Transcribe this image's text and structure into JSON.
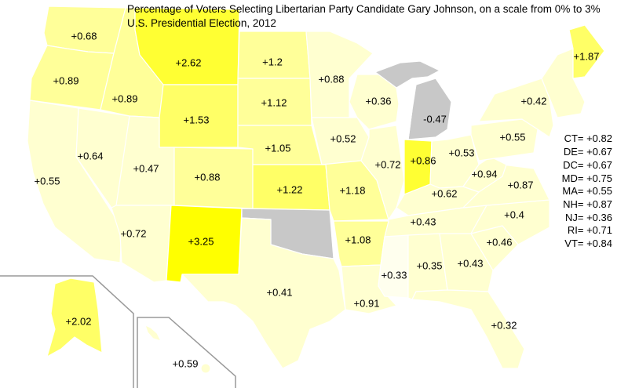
{
  "title_line1": "Percentage of Voters Selecting Libertarian Party Candidate Gary Johnson, on a scale from 0% to 3%",
  "title_line2": "U.S. Presidential Election, 2012",
  "colors": {
    "very_light": "#ffffd0",
    "light": "#ffff99",
    "medium": "#ffff66",
    "strong": "#ffff00",
    "no_data": "#c8c8c8",
    "border": "#ffffff"
  },
  "states": {
    "WA": "+0.68",
    "OR": "+0.89",
    "ID": "+0.89",
    "MT": "+2.62",
    "ND": "+1.2",
    "SD": "+1.12",
    "MN": "+0.88",
    "WI": "+0.36",
    "MI": "-0.47",
    "WY": "+1.53",
    "NE": "+1.05",
    "IA": "+0.52",
    "NV": "+0.64",
    "UT": "+0.47",
    "CO": "+0.88",
    "KS": "+1.22",
    "MO": "+1.18",
    "IL": "+0.72",
    "IN": "+0.86",
    "OH": "+0.53",
    "PA": "+0.55",
    "NY": "+0.42",
    "ME": "+1.87",
    "CA": "+0.55",
    "AZ": "+0.72",
    "NM": "+3.25",
    "TX": "+0.41",
    "AR": "+1.08",
    "LA": "+0.91",
    "MS": "+0.33",
    "AL": "+0.35",
    "GA": "+0.43",
    "FL": "+0.32",
    "SC": "+0.46",
    "NC": "+0.4",
    "TN": "+0.43",
    "KY": "+0.62",
    "WV": "+0.94",
    "VA": "+0.87",
    "AK": "+2.02",
    "HI": "+0.59"
  },
  "small_states": [
    "CT= +0.82",
    "DE= +0.67",
    "DC= +0.67",
    "MD= +0.75",
    "MA= +0.55",
    "NH= +0.87",
    "NJ= +0.36",
    "RI= +0.71",
    "VT= +0.84"
  ]
}
